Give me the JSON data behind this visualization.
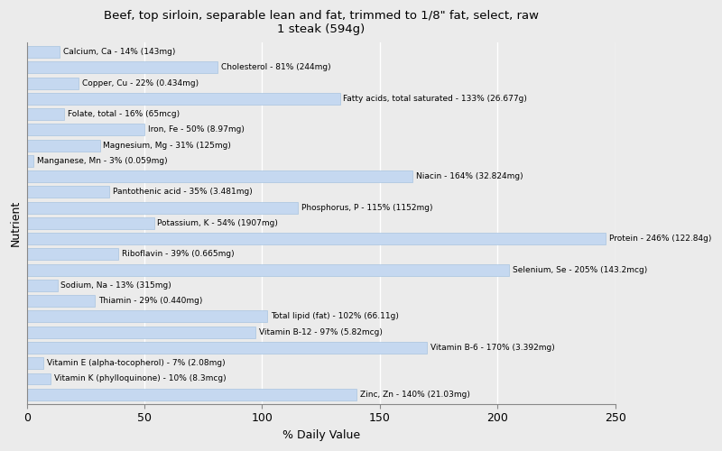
{
  "title": "Beef, top sirloin, separable lean and fat, trimmed to 1/8\" fat, select, raw\n1 steak (594g)",
  "xlabel": "% Daily Value",
  "ylabel": "Nutrient",
  "xlim": [
    0,
    250
  ],
  "xticks": [
    0,
    50,
    100,
    150,
    200,
    250
  ],
  "background_color": "#ebebeb",
  "bar_color": "#c5d8f0",
  "bar_edge_color": "#a8c4e0",
  "nutrients": [
    "Calcium, Ca - 14% (143mg)",
    "Cholesterol - 81% (244mg)",
    "Copper, Cu - 22% (0.434mg)",
    "Fatty acids, total saturated - 133% (26.677g)",
    "Folate, total - 16% (65mcg)",
    "Iron, Fe - 50% (8.97mg)",
    "Magnesium, Mg - 31% (125mg)",
    "Manganese, Mn - 3% (0.059mg)",
    "Niacin - 164% (32.824mg)",
    "Pantothenic acid - 35% (3.481mg)",
    "Phosphorus, P - 115% (1152mg)",
    "Potassium, K - 54% (1907mg)",
    "Protein - 246% (122.84g)",
    "Riboflavin - 39% (0.665mg)",
    "Selenium, Se - 205% (143.2mcg)",
    "Sodium, Na - 13% (315mg)",
    "Thiamin - 29% (0.440mg)",
    "Total lipid (fat) - 102% (66.11g)",
    "Vitamin B-12 - 97% (5.82mcg)",
    "Vitamin B-6 - 170% (3.392mg)",
    "Vitamin E (alpha-tocopherol) - 7% (2.08mg)",
    "Vitamin K (phylloquinone) - 10% (8.3mcg)",
    "Zinc, Zn - 140% (21.03mg)"
  ],
  "values": [
    14,
    81,
    22,
    133,
    16,
    50,
    31,
    3,
    164,
    35,
    115,
    54,
    246,
    39,
    205,
    13,
    29,
    102,
    97,
    170,
    7,
    10,
    140
  ],
  "label_fontsize": 6.5,
  "title_fontsize": 9.5,
  "axis_label_fontsize": 9
}
